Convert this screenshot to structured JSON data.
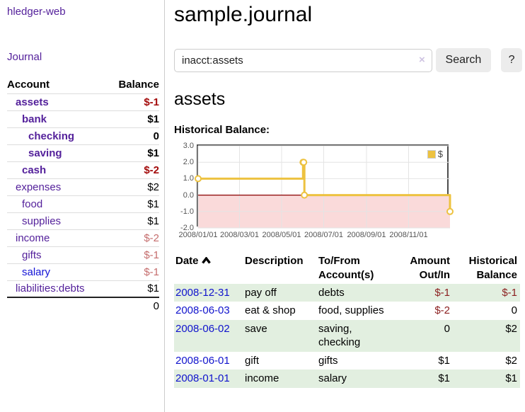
{
  "app": {
    "brand": "hledger-web"
  },
  "colors": {
    "accent_purple": "#54219b",
    "link_blue": "#1313d6",
    "negative_strong": "#a30b0b",
    "negative_soft": "#c56d6d",
    "negative_register": "#8b1f1f",
    "stripe_green": "#e2efe0",
    "series_gold": "#edc240"
  },
  "sidebar": {
    "journal_label": "Journal",
    "accounts_table": {
      "headers": {
        "account": "Account",
        "balance": "Balance"
      },
      "rows": [
        {
          "name": "assets",
          "balance": "$-1",
          "depth": 1,
          "matched": true
        },
        {
          "name": "bank",
          "balance": "$1",
          "depth": 2,
          "matched": true
        },
        {
          "name": "checking",
          "balance": "0",
          "depth": 3,
          "matched": true
        },
        {
          "name": "saving",
          "balance": "$1",
          "depth": 3,
          "matched": true
        },
        {
          "name": "cash",
          "balance": "$-2",
          "depth": 2,
          "matched": true
        },
        {
          "name": "expenses",
          "balance": "$2",
          "depth": 1,
          "matched": false
        },
        {
          "name": "food",
          "balance": "$1",
          "depth": 2,
          "matched": false
        },
        {
          "name": "supplies",
          "balance": "$1",
          "depth": 2,
          "matched": false
        },
        {
          "name": "income",
          "balance": "$-2",
          "depth": 1,
          "matched": false
        },
        {
          "name": "gifts",
          "balance": "$-1",
          "depth": 2,
          "matched": false
        },
        {
          "name": "salary",
          "balance": "$-1",
          "depth": 2,
          "matched": false,
          "link_style": "unvisited"
        },
        {
          "name": "liabilities:debts",
          "balance": "$1",
          "depth": 1,
          "matched": false
        }
      ],
      "total": "0"
    }
  },
  "header": {
    "title": "sample.journal"
  },
  "search": {
    "value": "inacct:assets",
    "clear_label": "×",
    "button_label": "Search",
    "help_label": "?"
  },
  "account_page": {
    "heading": "assets",
    "chart_label": "Historical Balance:"
  },
  "chart_data": {
    "type": "line",
    "style": "step",
    "title": "Historical Balance:",
    "legend": "$",
    "legend_position": "top-right",
    "grid": true,
    "ylim": [
      -2,
      3
    ],
    "y_ticks": [
      3.0,
      2.0,
      1.0,
      0.0,
      -1.0,
      -2.0
    ],
    "y_tick_labels": [
      "3.0",
      "2.0",
      "1.0",
      "0.0",
      "-1.0",
      "-2.0"
    ],
    "x_range": [
      "2008-01-01",
      "2008-12-31"
    ],
    "x_ticks": [
      {
        "label": "2008/01/01",
        "date": "2008-01-01"
      },
      {
        "label": "2008/03/01",
        "date": "2008-03-01"
      },
      {
        "label": "2008/05/01",
        "date": "2008-05-01"
      },
      {
        "label": "2008/07/01",
        "date": "2008-07-01"
      },
      {
        "label": "2008/09/01",
        "date": "2008-09-01"
      },
      {
        "label": "2008/11/01",
        "date": "2008-11-01"
      }
    ],
    "series": [
      {
        "name": "$",
        "color": "#edc240",
        "points": [
          [
            "2008-01-01",
            1
          ],
          [
            "2008-06-01",
            2
          ],
          [
            "2008-06-02",
            2
          ],
          [
            "2008-06-03",
            0
          ],
          [
            "2008-12-31",
            -1
          ]
        ]
      }
    ],
    "negative_fill": "#fadada",
    "zero_line_color": "#8b0000"
  },
  "register": {
    "headers": {
      "date": "Date",
      "description": "Description",
      "accounts_line1": "To/From",
      "accounts_line2": "Account(s)",
      "amount_line1": "Amount",
      "amount_line2": "Out/In",
      "balance_line1": "Historical",
      "balance_line2": "Balance"
    },
    "rows": [
      {
        "date": "2008-12-31",
        "description": "pay off",
        "accounts": "debts",
        "amount": "$-1",
        "balance": "$-1"
      },
      {
        "date": "2008-06-03",
        "description": "eat & shop",
        "accounts": "food, supplies",
        "amount": "$-2",
        "balance": "0"
      },
      {
        "date": "2008-06-02",
        "description": "save",
        "accounts": "saving, checking",
        "amount": "0",
        "balance": "$2"
      },
      {
        "date": "2008-06-01",
        "description": "gift",
        "accounts": "gifts",
        "amount": "$1",
        "balance": "$2"
      },
      {
        "date": "2008-01-01",
        "description": "income",
        "accounts": "salary",
        "amount": "$1",
        "balance": "$1"
      }
    ]
  }
}
